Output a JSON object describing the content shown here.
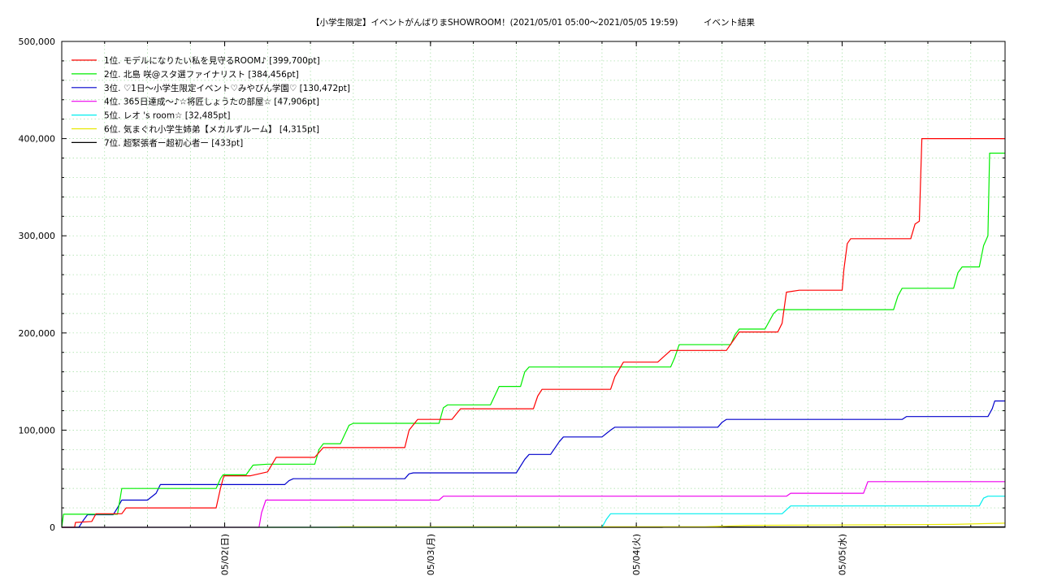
{
  "chart_data": {
    "type": "line",
    "title": "【小学生限定】イベントがんばりまSHOWROOM！(2021/05/01 05:00〜2021/05/05 19:59)　　　イベント結果",
    "ylim": [
      0,
      500000
    ],
    "xlim_hours": [
      0,
      110
    ],
    "y_ticks": [
      "0",
      "100,000",
      "200,000",
      "300,000",
      "400,000",
      "500,000"
    ],
    "x_ticks": [
      {
        "label": "05/02(日)",
        "at": "2021-05-02 00:00"
      },
      {
        "label": "05/03(月)",
        "at": "2021-05-03 00:00"
      },
      {
        "label": "05/04(火)",
        "at": "2021-05-04 00:00"
      },
      {
        "label": "05/05(水)",
        "at": "2021-05-05 00:00"
      }
    ],
    "grid": true,
    "legend_position": "top-left",
    "series": [
      {
        "name": "1位. モデルになりたい私を見守るROOM♪ [399,700pt]",
        "color": "#ff0000",
        "points": [
          [
            0,
            0
          ],
          [
            1.5,
            0
          ],
          [
            1.6,
            5000
          ],
          [
            3.5,
            6000
          ],
          [
            4,
            14000
          ],
          [
            7,
            14000
          ],
          [
            7.5,
            20000
          ],
          [
            18,
            20000
          ],
          [
            18.5,
            40000
          ],
          [
            18.9,
            53000
          ],
          [
            22,
            53000
          ],
          [
            24,
            57000
          ],
          [
            25,
            72000
          ],
          [
            29.5,
            72000
          ],
          [
            30.5,
            82000
          ],
          [
            40,
            82000
          ],
          [
            40.5,
            100000
          ],
          [
            41.5,
            111000
          ],
          [
            45.5,
            111000
          ],
          [
            46.5,
            122000
          ],
          [
            55,
            122000
          ],
          [
            55.5,
            135000
          ],
          [
            56,
            142000
          ],
          [
            64,
            142000
          ],
          [
            64.5,
            155000
          ],
          [
            65.5,
            170000
          ],
          [
            69.5,
            170000
          ],
          [
            71,
            182000
          ],
          [
            77.5,
            182000
          ],
          [
            79,
            201000
          ],
          [
            83.5,
            201000
          ],
          [
            84,
            210000
          ],
          [
            84.5,
            242000
          ],
          [
            86,
            244000
          ],
          [
            91,
            244000
          ],
          [
            91.2,
            265000
          ],
          [
            91.6,
            292000
          ],
          [
            92,
            297000
          ],
          [
            99,
            297000
          ],
          [
            99.5,
            312000
          ],
          [
            100,
            315000
          ],
          [
            100.3,
            400000
          ],
          [
            110,
            400000
          ]
        ]
      },
      {
        "name": "2位. 北島 咲@スタ選ファイナリスト [384,456pt]",
        "color": "#00ee00",
        "points": [
          [
            0,
            0
          ],
          [
            0.2,
            13500
          ],
          [
            6.5,
            13500
          ],
          [
            7,
            40000
          ],
          [
            18,
            40000
          ],
          [
            18.5,
            50000
          ],
          [
            18.8,
            54000
          ],
          [
            21.5,
            54000
          ],
          [
            22.3,
            64000
          ],
          [
            24,
            65000
          ],
          [
            29.5,
            65000
          ],
          [
            30,
            80000
          ],
          [
            30.5,
            86000
          ],
          [
            32.5,
            86000
          ],
          [
            33.5,
            105000
          ],
          [
            34,
            107000
          ],
          [
            44,
            107000
          ],
          [
            44.5,
            123000
          ],
          [
            45,
            126000
          ],
          [
            50,
            126000
          ],
          [
            51,
            145000
          ],
          [
            53.5,
            145000
          ],
          [
            54,
            160000
          ],
          [
            54.5,
            165000
          ],
          [
            71,
            165000
          ],
          [
            71.5,
            175000
          ],
          [
            72,
            188000
          ],
          [
            78,
            188000
          ],
          [
            78.5,
            198000
          ],
          [
            79,
            204000
          ],
          [
            82,
            204000
          ],
          [
            83,
            220000
          ],
          [
            83.5,
            224000
          ],
          [
            97,
            224000
          ],
          [
            97.5,
            238000
          ],
          [
            98,
            246000
          ],
          [
            104,
            246000
          ],
          [
            104.5,
            262000
          ],
          [
            105,
            268000
          ],
          [
            107,
            268000
          ],
          [
            107.5,
            290000
          ],
          [
            108,
            300000
          ],
          [
            108.2,
            385000
          ],
          [
            110,
            385000
          ]
        ]
      },
      {
        "name": "3位. ♡1日〜小学生限定イベント♡みやびん学園♡ [130,472pt]",
        "color": "#0000cc",
        "points": [
          [
            0,
            0
          ],
          [
            2,
            0
          ],
          [
            2.5,
            7000
          ],
          [
            3,
            13000
          ],
          [
            6,
            13000
          ],
          [
            6.5,
            20000
          ],
          [
            7,
            28000
          ],
          [
            10,
            28000
          ],
          [
            11,
            35000
          ],
          [
            11.5,
            44000
          ],
          [
            26,
            44000
          ],
          [
            26.5,
            48000
          ],
          [
            27,
            50000
          ],
          [
            40,
            50000
          ],
          [
            40.5,
            55000
          ],
          [
            41,
            56000
          ],
          [
            53,
            56000
          ],
          [
            54,
            70000
          ],
          [
            54.5,
            75000
          ],
          [
            57,
            75000
          ],
          [
            58,
            88000
          ],
          [
            58.5,
            93000
          ],
          [
            63,
            93000
          ],
          [
            64,
            100000
          ],
          [
            64.5,
            103000
          ],
          [
            76.5,
            103000
          ],
          [
            77,
            108000
          ],
          [
            77.5,
            111000
          ],
          [
            98,
            111000
          ],
          [
            98.5,
            114000
          ],
          [
            108,
            114000
          ],
          [
            108.5,
            122000
          ],
          [
            108.8,
            130000
          ],
          [
            110,
            130000
          ]
        ]
      },
      {
        "name": "4位. 365日達成〜♪☆将匠しょうたの部屋☆ [47,906pt]",
        "color": "#ee00ee",
        "points": [
          [
            0,
            0
          ],
          [
            23,
            0
          ],
          [
            23.3,
            15000
          ],
          [
            23.8,
            28000
          ],
          [
            44,
            28000
          ],
          [
            44.5,
            32000
          ],
          [
            84.5,
            32000
          ],
          [
            85,
            35000
          ],
          [
            93.5,
            35000
          ],
          [
            94,
            47000
          ],
          [
            110,
            47000
          ]
        ]
      },
      {
        "name": "5位. レオ 's room☆ [32,485pt]",
        "color": "#00eeee",
        "points": [
          [
            0,
            0
          ],
          [
            63,
            0
          ],
          [
            63.5,
            8000
          ],
          [
            64,
            14000
          ],
          [
            76,
            14000
          ],
          [
            84,
            14000
          ],
          [
            85,
            22000
          ],
          [
            107,
            22000
          ],
          [
            107.5,
            30000
          ],
          [
            108,
            32000
          ],
          [
            110,
            32000
          ]
        ]
      },
      {
        "name": "6位. 気まぐれ小学生姉弟【メカルずルーム】 [4,315pt]",
        "color": "#e8e800",
        "points": [
          [
            0,
            0
          ],
          [
            32,
            0
          ],
          [
            32.5,
            500
          ],
          [
            75,
            500
          ],
          [
            80,
            2000
          ],
          [
            94,
            2500
          ],
          [
            104,
            3000
          ],
          [
            110,
            4300
          ]
        ]
      },
      {
        "name": "7位. 超緊張者ー超初心者ー [433pt]",
        "color": "#000000",
        "points": [
          [
            0,
            0
          ],
          [
            70,
            0
          ],
          [
            70.5,
            300
          ],
          [
            110,
            400
          ]
        ]
      }
    ]
  }
}
